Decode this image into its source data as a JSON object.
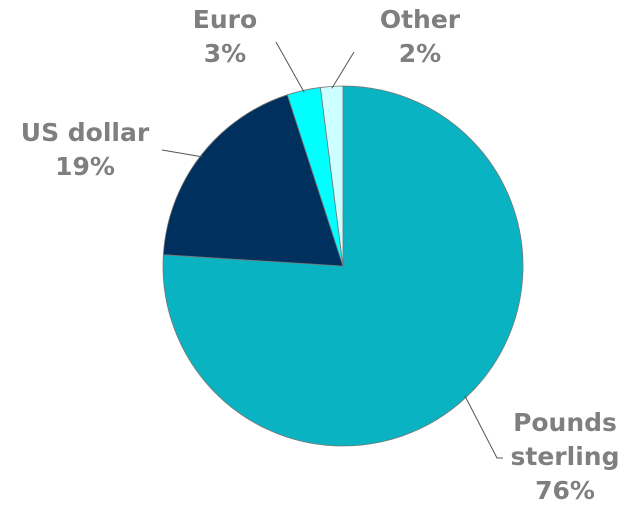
{
  "chart_data": {
    "type": "pie",
    "categories": [
      "Pounds sterling",
      "US dollar",
      "Euro",
      "Other"
    ],
    "values": [
      76,
      19,
      3,
      2
    ],
    "value_labels": [
      "76%",
      "19%",
      "3%",
      "2%"
    ],
    "colors": [
      "#0ab3c2",
      "#00305e",
      "#00ffff",
      "#ccffff"
    ]
  }
}
